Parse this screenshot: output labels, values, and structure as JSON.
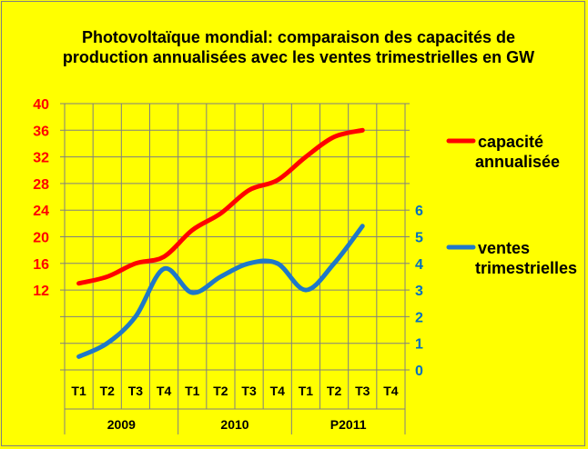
{
  "chart_data": {
    "type": "line",
    "title_line1": "Photovoltaïque mondial: comparaison des capacités de",
    "title_line2": "production annualisées avec les ventes trimestrielles en GW",
    "categories": [
      "T1",
      "T2",
      "T3",
      "T4",
      "T1",
      "T2",
      "T3",
      "T4",
      "T1",
      "T2",
      "T3",
      "T4"
    ],
    "groups": [
      {
        "label": "2009",
        "span": 4
      },
      {
        "label": "2010",
        "span": 4
      },
      {
        "label": "P2011",
        "span": 4
      }
    ],
    "y_left": {
      "ticks": [
        12,
        16,
        20,
        24,
        28,
        32,
        36,
        40
      ],
      "range": [
        0,
        40
      ],
      "color": "#ff0000"
    },
    "y_right": {
      "ticks": [
        0,
        1,
        2,
        3,
        4,
        5,
        6
      ],
      "range": [
        0,
        10
      ],
      "color": "#0070c0"
    },
    "grid": true,
    "legend_placement": "right",
    "series": [
      {
        "name_line1": "capacité",
        "name_line2": "annualisée",
        "axis": "left",
        "color": "#ff0000",
        "values": [
          13,
          14,
          16,
          17,
          21,
          23.5,
          27,
          28.5,
          32,
          35,
          36,
          null
        ]
      },
      {
        "name_line1": "ventes",
        "name_line2": "trimestrielles",
        "axis": "right",
        "color": "#1f78c8",
        "values": [
          0.5,
          1,
          2,
          3.8,
          2.9,
          3.5,
          4,
          4,
          3,
          4,
          5.4,
          null
        ]
      }
    ]
  }
}
